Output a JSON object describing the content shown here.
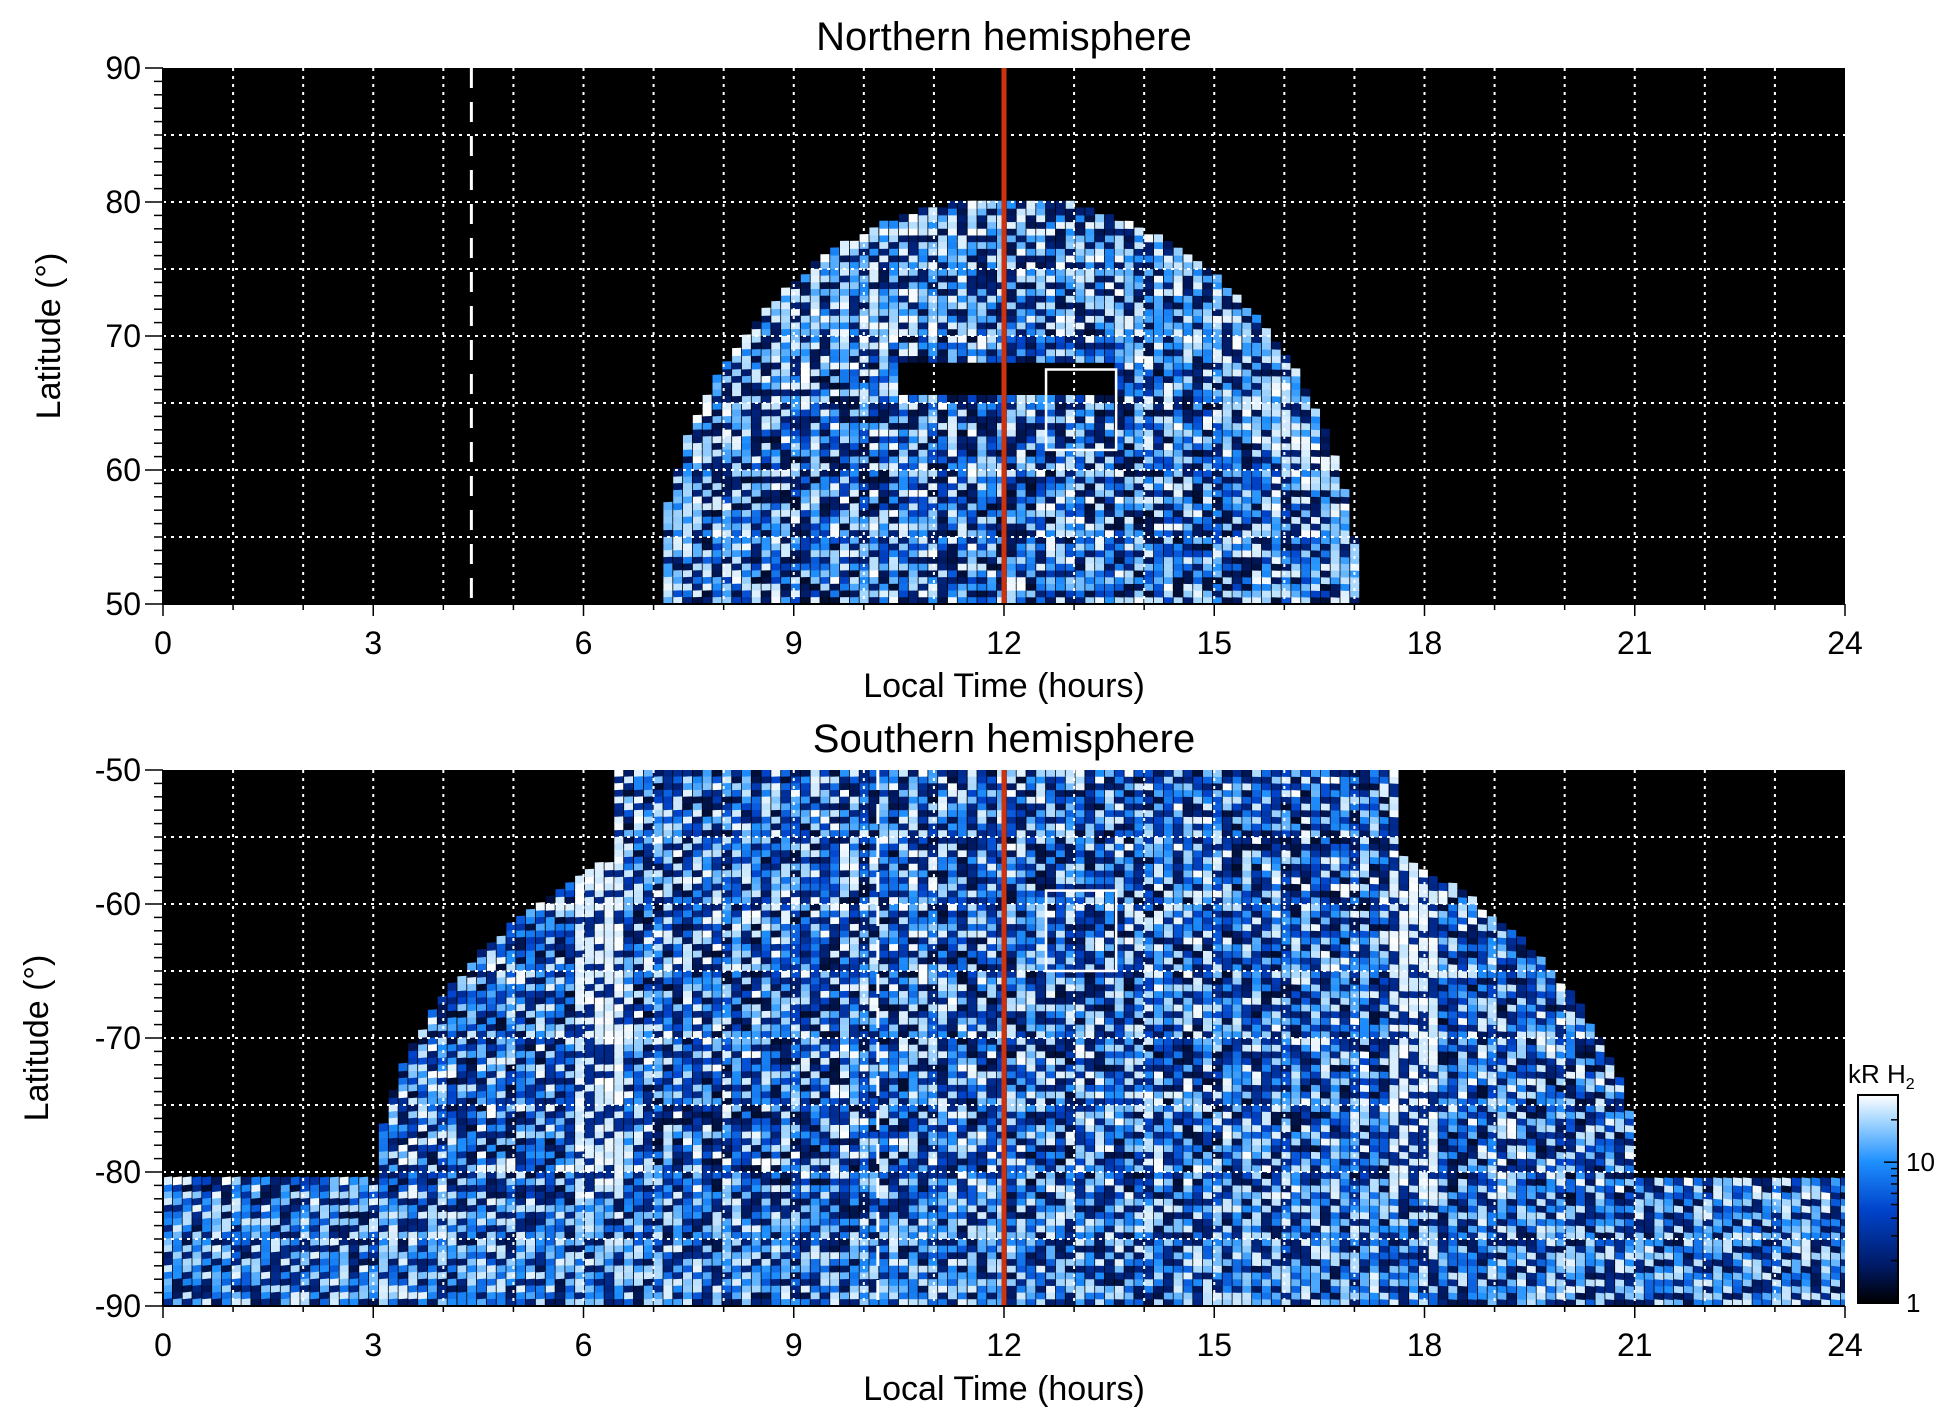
{
  "chart_data": [
    {
      "type": "heatmap",
      "title": "Northern hemisphere",
      "xlabel": "Local Time (hours)",
      "ylabel": "Latitude (°)",
      "xlim": [
        0,
        24
      ],
      "ylim": [
        50,
        90
      ],
      "xticks": [
        0,
        3,
        6,
        9,
        12,
        15,
        18,
        21,
        24
      ],
      "yticks": [
        50,
        60,
        70,
        80,
        90
      ],
      "grid": true,
      "emission_region": {
        "lt_range": [
          7,
          17
        ],
        "max_latitude": 80,
        "dark_gap_lt": [
          10.5,
          13.5
        ],
        "dark_gap_lat": [
          65,
          68
        ]
      },
      "reference_line_lt": 12,
      "dashed_line_lt": 4.4,
      "highlight_box": {
        "lt": [
          12.6,
          13.6
        ],
        "lat": [
          61.5,
          67.5
        ]
      },
      "colors": {
        "line": "#cc3311",
        "box": "#ffffff"
      }
    },
    {
      "type": "heatmap",
      "title": "Southern hemisphere",
      "xlabel": "Local Time (hours)",
      "ylabel": "Latitude (°)",
      "xlim": [
        0,
        24
      ],
      "ylim": [
        -90,
        -50
      ],
      "xticks": [
        0,
        3,
        6,
        9,
        12,
        15,
        18,
        21,
        24
      ],
      "yticks": [
        -90,
        -80,
        -70,
        -60,
        -50
      ],
      "grid": true,
      "bright_bands_lt": [
        6.2,
        17.8
      ],
      "reference_line_lt": 12,
      "dashed_line_lt": 10.2,
      "highlight_box": {
        "lt": [
          12.6,
          13.6
        ],
        "lat": [
          -59,
          -65
        ]
      },
      "colors": {
        "line": "#cc3311",
        "box": "#ffffff"
      }
    }
  ],
  "colorbar": {
    "label": "kR H",
    "label_subscript": "2",
    "scale": "log",
    "range": [
      1,
      30
    ],
    "ticks": [
      1,
      10
    ],
    "colors": [
      "#000000",
      "#001a66",
      "#0044cc",
      "#1e90ff",
      "#a8d8ff",
      "#ffffff"
    ]
  }
}
